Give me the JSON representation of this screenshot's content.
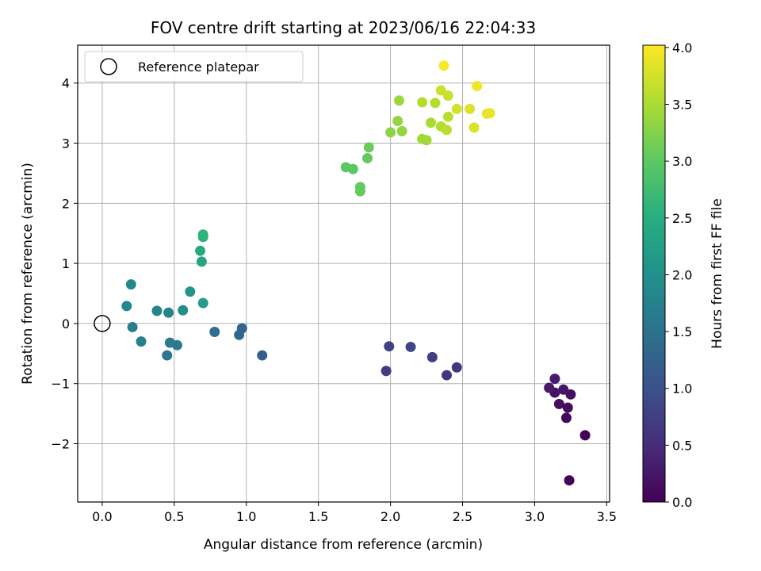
{
  "chart_data": {
    "type": "scatter",
    "title": "FOV centre drift starting at 2023/06/16 22:04:33",
    "xlabel": "Angular distance from reference (arcmin)",
    "ylabel": "Rotation from reference (arcmin)",
    "xlim": [
      -0.17,
      3.52
    ],
    "ylim": [
      -2.97,
      4.63
    ],
    "xticks": [
      0.0,
      0.5,
      1.0,
      1.5,
      2.0,
      2.5,
      3.0,
      3.5
    ],
    "xtick_labels": [
      "0.0",
      "0.5",
      "1.0",
      "1.5",
      "2.0",
      "2.5",
      "3.0",
      "3.5"
    ],
    "yticks": [
      -2,
      -1,
      0,
      1,
      2,
      3,
      4
    ],
    "ytick_labels": [
      "−2",
      "−1",
      "0",
      "1",
      "2",
      "3",
      "4"
    ],
    "grid": true,
    "legend": {
      "placement": "top-left",
      "entries": [
        "Reference platepar"
      ]
    },
    "reference_point": {
      "x": 0.0,
      "y": 0.0,
      "label": "Reference platepar"
    },
    "colorbar": {
      "label": "Hours from first FF file",
      "colormap": "viridis",
      "range": [
        0.0,
        4.02
      ],
      "ticks": [
        0.0,
        0.5,
        1.0,
        1.5,
        2.0,
        2.5,
        3.0,
        3.5,
        4.0
      ],
      "tick_labels": [
        "0.0",
        "0.5",
        "1.0",
        "1.5",
        "2.0",
        "2.5",
        "3.0",
        "3.5",
        "4.0"
      ]
    },
    "points": [
      {
        "x": 3.24,
        "y": -2.61,
        "h": 0.02
      },
      {
        "x": 3.35,
        "y": -1.86,
        "h": 0.05
      },
      {
        "x": 3.22,
        "y": -1.57,
        "h": 0.09
      },
      {
        "x": 3.23,
        "y": -1.4,
        "h": 0.12
      },
      {
        "x": 3.17,
        "y": -1.34,
        "h": 0.15
      },
      {
        "x": 3.25,
        "y": -1.18,
        "h": 0.18
      },
      {
        "x": 3.14,
        "y": -1.15,
        "h": 0.21
      },
      {
        "x": 3.2,
        "y": -1.1,
        "h": 0.24
      },
      {
        "x": 3.1,
        "y": -1.07,
        "h": 0.27
      },
      {
        "x": 3.14,
        "y": -0.92,
        "h": 0.3
      },
      {
        "x": 2.39,
        "y": -0.86,
        "h": 0.6
      },
      {
        "x": 2.46,
        "y": -0.73,
        "h": 0.65
      },
      {
        "x": 1.97,
        "y": -0.79,
        "h": 0.68
      },
      {
        "x": 2.29,
        "y": -0.56,
        "h": 0.75
      },
      {
        "x": 1.99,
        "y": -0.38,
        "h": 0.8
      },
      {
        "x": 2.14,
        "y": -0.39,
        "h": 0.85
      },
      {
        "x": 1.11,
        "y": -0.53,
        "h": 1.2
      },
      {
        "x": 0.97,
        "y": -0.08,
        "h": 1.28
      },
      {
        "x": 0.95,
        "y": -0.19,
        "h": 1.33
      },
      {
        "x": 0.78,
        "y": -0.14,
        "h": 1.45
      },
      {
        "x": 0.45,
        "y": -0.53,
        "h": 1.55
      },
      {
        "x": 0.52,
        "y": -0.36,
        "h": 1.62
      },
      {
        "x": 0.47,
        "y": -0.32,
        "h": 1.66
      },
      {
        "x": 0.27,
        "y": -0.3,
        "h": 1.7
      },
      {
        "x": 0.21,
        "y": -0.06,
        "h": 1.75
      },
      {
        "x": 0.38,
        "y": 0.21,
        "h": 1.8
      },
      {
        "x": 0.46,
        "y": 0.18,
        "h": 1.82
      },
      {
        "x": 0.17,
        "y": 0.29,
        "h": 1.86
      },
      {
        "x": 0.2,
        "y": 0.65,
        "h": 1.9
      },
      {
        "x": 0.56,
        "y": 0.22,
        "h": 2.0
      },
      {
        "x": 0.61,
        "y": 0.53,
        "h": 2.1
      },
      {
        "x": 0.7,
        "y": 0.34,
        "h": 2.2
      },
      {
        "x": 0.69,
        "y": 1.03,
        "h": 2.35
      },
      {
        "x": 0.68,
        "y": 1.21,
        "h": 2.4
      },
      {
        "x": 0.7,
        "y": 1.44,
        "h": 2.55
      },
      {
        "x": 0.7,
        "y": 1.48,
        "h": 2.6
      },
      {
        "x": 1.69,
        "y": 2.6,
        "h": 3.0
      },
      {
        "x": 1.74,
        "y": 2.57,
        "h": 3.0
      },
      {
        "x": 1.79,
        "y": 2.27,
        "h": 3.05
      },
      {
        "x": 1.79,
        "y": 2.2,
        "h": 3.05
      },
      {
        "x": 1.84,
        "y": 2.75,
        "h": 3.05
      },
      {
        "x": 1.85,
        "y": 2.93,
        "h": 3.1
      },
      {
        "x": 2.0,
        "y": 3.18,
        "h": 3.3
      },
      {
        "x": 2.05,
        "y": 3.37,
        "h": 3.35
      },
      {
        "x": 2.08,
        "y": 3.2,
        "h": 3.35
      },
      {
        "x": 2.06,
        "y": 3.71,
        "h": 3.4
      },
      {
        "x": 2.22,
        "y": 3.07,
        "h": 3.45
      },
      {
        "x": 2.25,
        "y": 3.05,
        "h": 3.45
      },
      {
        "x": 2.28,
        "y": 3.34,
        "h": 3.5
      },
      {
        "x": 2.22,
        "y": 3.68,
        "h": 3.55
      },
      {
        "x": 2.31,
        "y": 3.67,
        "h": 3.55
      },
      {
        "x": 2.35,
        "y": 3.28,
        "h": 3.55
      },
      {
        "x": 2.39,
        "y": 3.22,
        "h": 3.6
      },
      {
        "x": 2.4,
        "y": 3.44,
        "h": 3.6
      },
      {
        "x": 2.35,
        "y": 3.88,
        "h": 3.7
      },
      {
        "x": 2.4,
        "y": 3.79,
        "h": 3.7
      },
      {
        "x": 2.46,
        "y": 3.57,
        "h": 3.75
      },
      {
        "x": 2.55,
        "y": 3.57,
        "h": 3.8
      },
      {
        "x": 2.58,
        "y": 3.26,
        "h": 3.8
      },
      {
        "x": 2.67,
        "y": 3.49,
        "h": 3.85
      },
      {
        "x": 2.69,
        "y": 3.5,
        "h": 3.9
      },
      {
        "x": 2.6,
        "y": 3.95,
        "h": 3.95
      },
      {
        "x": 2.37,
        "y": 4.29,
        "h": 4.0
      }
    ]
  }
}
